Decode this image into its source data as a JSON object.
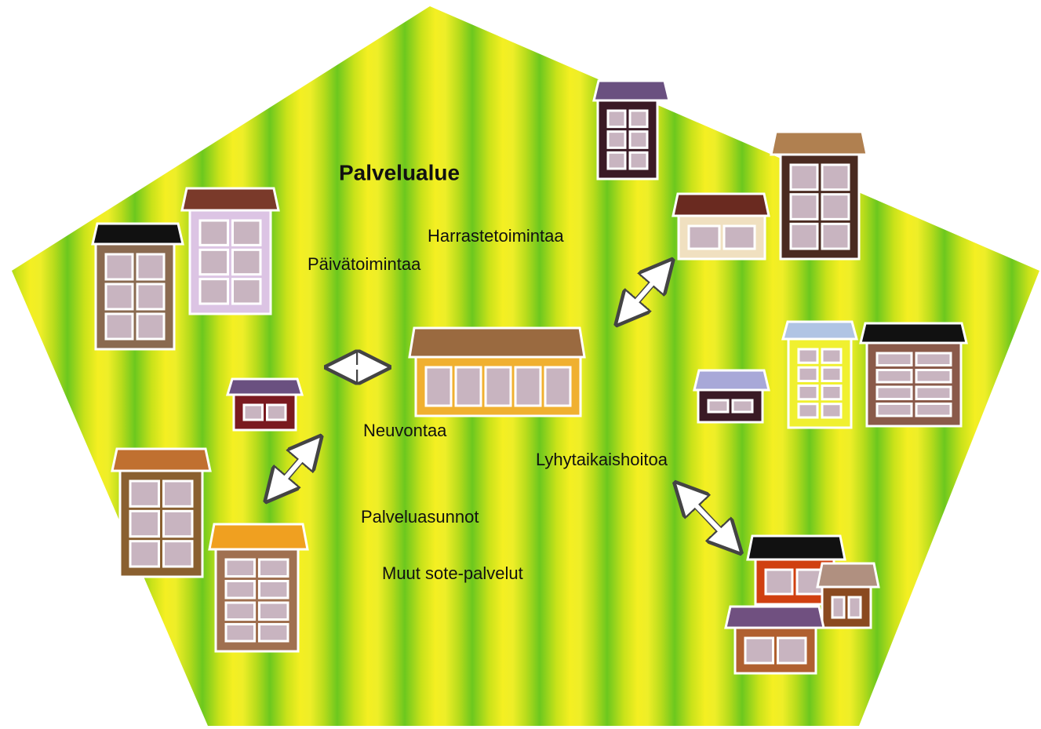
{
  "title": "Palvelualue",
  "labels": [
    "Harrastetoimintaa",
    "Päivätoimintaa",
    "Neuvontaa",
    "Lyhytaikaishoitoa",
    "Palveluasunnot",
    "Muut sote-palvelut"
  ]
}
